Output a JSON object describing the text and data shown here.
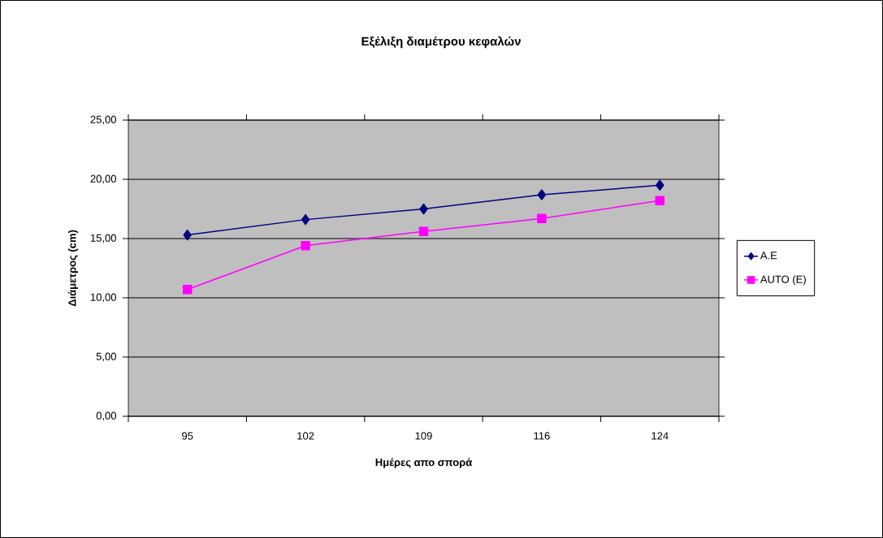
{
  "chart_data": {
    "type": "line",
    "title": "Εξέλιξη διαμέτρου κεφαλών",
    "xlabel": "Ημέρες απο σπορά",
    "ylabel": "Διάμετρος (cm)",
    "categories": [
      "95",
      "102",
      "109",
      "116",
      "124"
    ],
    "series": [
      {
        "name": "A.E",
        "color": "#000080",
        "marker": "diamond",
        "values": [
          15.3,
          16.6,
          17.5,
          18.7,
          19.5
        ]
      },
      {
        "name": "AUTO (E)",
        "color": "#ff00ff",
        "marker": "square",
        "values": [
          10.7,
          14.4,
          15.6,
          16.7,
          18.2
        ]
      }
    ],
    "ylim": [
      0,
      25
    ],
    "yticks": [
      {
        "value": 0,
        "label": "0,00"
      },
      {
        "value": 5,
        "label": "5,00"
      },
      {
        "value": 10,
        "label": "10,00"
      },
      {
        "value": 15,
        "label": "15,00"
      },
      {
        "value": 20,
        "label": "20,00"
      },
      {
        "value": 25,
        "label": "25,00"
      }
    ],
    "grid": "y",
    "legend": "right"
  }
}
